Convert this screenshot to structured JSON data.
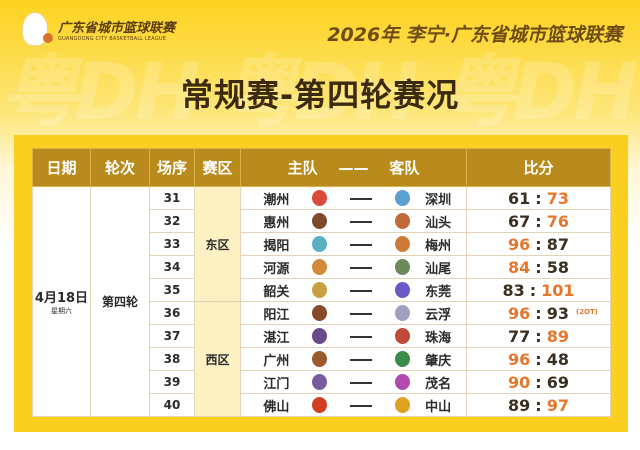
{
  "brand": {
    "name_cn": "广东省城市篮球联赛",
    "name_en": "GUANGDONG CITY BASKETBALL LEAGUE"
  },
  "headline": "2026年 李宁·广东省城市篮球联赛",
  "title": "常规赛-第四轮赛况",
  "colors": {
    "accent": "#fbcf1f",
    "header": "#b98a1c",
    "winner": "#e8762a",
    "loser": "#3a2f20"
  },
  "headers": {
    "date": "日期",
    "round": "轮次",
    "match": "场序",
    "zone": "赛区",
    "home": "主队",
    "dash": "——",
    "away": "客队",
    "score": "比分"
  },
  "date": "4月18日",
  "weekday": "星期六",
  "round": "第四轮",
  "zones": {
    "east": "东区",
    "west": "西区"
  },
  "score_sep": ":",
  "games": [
    {
      "no": "31",
      "home": "潮州",
      "away": "深圳",
      "hs": "61",
      "as": "73",
      "note": ""
    },
    {
      "no": "32",
      "home": "惠州",
      "away": "汕头",
      "hs": "67",
      "as": "76",
      "note": ""
    },
    {
      "no": "33",
      "home": "揭阳",
      "away": "梅州",
      "hs": "96",
      "as": "87",
      "note": ""
    },
    {
      "no": "34",
      "home": "河源",
      "away": "汕尾",
      "hs": "84",
      "as": "58",
      "note": ""
    },
    {
      "no": "35",
      "home": "韶关",
      "away": "东莞",
      "hs": "83",
      "as": "101",
      "note": ""
    },
    {
      "no": "36",
      "home": "阳江",
      "away": "云浮",
      "hs": "96",
      "as": "93",
      "note": "(2OT)"
    },
    {
      "no": "37",
      "home": "湛江",
      "away": "珠海",
      "hs": "77",
      "as": "89",
      "note": ""
    },
    {
      "no": "38",
      "home": "广州",
      "away": "肇庆",
      "hs": "96",
      "as": "48",
      "note": ""
    },
    {
      "no": "39",
      "home": "江门",
      "away": "茂名",
      "hs": "90",
      "as": "69",
      "note": ""
    },
    {
      "no": "40",
      "home": "佛山",
      "away": "中山",
      "hs": "89",
      "as": "97",
      "note": ""
    }
  ]
}
